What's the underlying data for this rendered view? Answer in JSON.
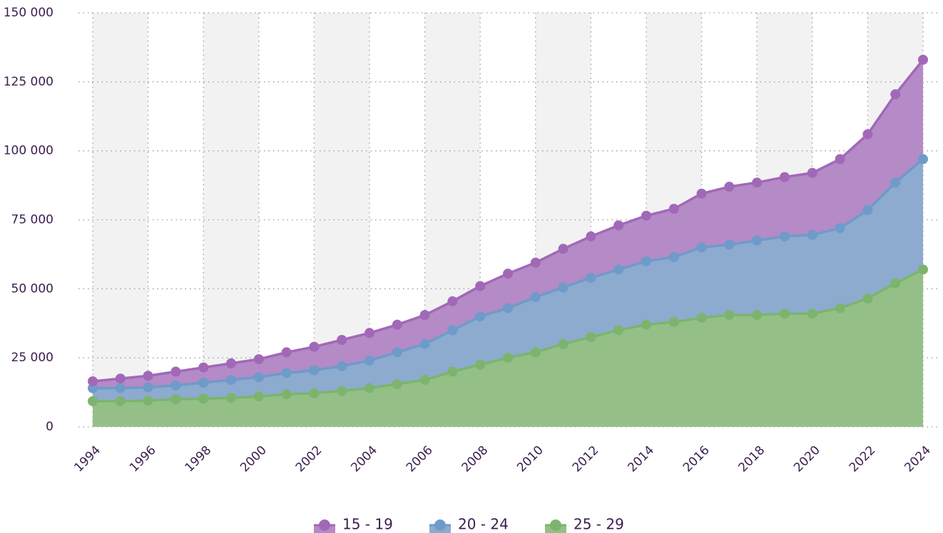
{
  "chart_data": {
    "type": "stacked_area",
    "categories": [
      "1994",
      null,
      "1996",
      null,
      "1998",
      null,
      "2000",
      null,
      "2002",
      null,
      "2004",
      null,
      "2006",
      null,
      "2008",
      null,
      "2010",
      null,
      "2012",
      null,
      "2014",
      null,
      "2016",
      null,
      "2018",
      null,
      "2020",
      null,
      "2022",
      null,
      "2024"
    ],
    "series": [
      {
        "name": "15 - 19",
        "color": "#a268b8",
        "fill": "#b48ac7",
        "values": [
          2500,
          3500,
          4200,
          5000,
          5500,
          6000,
          6500,
          7500,
          8500,
          9500,
          10000,
          10000,
          10500,
          10500,
          11000,
          12500,
          12500,
          14000,
          15000,
          16000,
          16500,
          17500,
          19500,
          21000,
          21000,
          21500,
          22500,
          25000,
          27500,
          32000,
          36000
        ]
      },
      {
        "name": "20 - 24",
        "color": "#6e9bc9",
        "fill": "#8cabcf",
        "values": [
          4700,
          4700,
          4800,
          5000,
          5800,
          6500,
          7000,
          7700,
          8300,
          9000,
          10000,
          11500,
          13000,
          15000,
          17500,
          18000,
          20000,
          20500,
          21500,
          22000,
          23000,
          23500,
          25500,
          25500,
          27000,
          28000,
          28500,
          29000,
          32000,
          36500,
          40000
        ]
      },
      {
        "name": "25 - 29",
        "color": "#7db46d",
        "fill": "#94c088",
        "values": [
          9300,
          9300,
          9500,
          10000,
          10200,
          10500,
          11000,
          11800,
          12200,
          13000,
          14000,
          15500,
          17000,
          20000,
          22500,
          25000,
          27000,
          30000,
          32500,
          35000,
          37000,
          38000,
          39500,
          40500,
          40500,
          41000,
          41000,
          43000,
          46500,
          52000,
          57000
        ]
      }
    ],
    "ylim": [
      0,
      150000
    ],
    "yticks": [
      0,
      {
        "value": 25000,
        "label": "25 000"
      },
      {
        "value": 50000,
        "label": "50 000"
      },
      {
        "value": 75000,
        "label": "75 000"
      },
      {
        "value": 100000,
        "label": "100 000"
      },
      {
        "value": 125000,
        "label": "125 000"
      },
      {
        "value": 150000,
        "label": "150 000"
      }
    ],
    "grid": true,
    "legend": "bottom"
  }
}
